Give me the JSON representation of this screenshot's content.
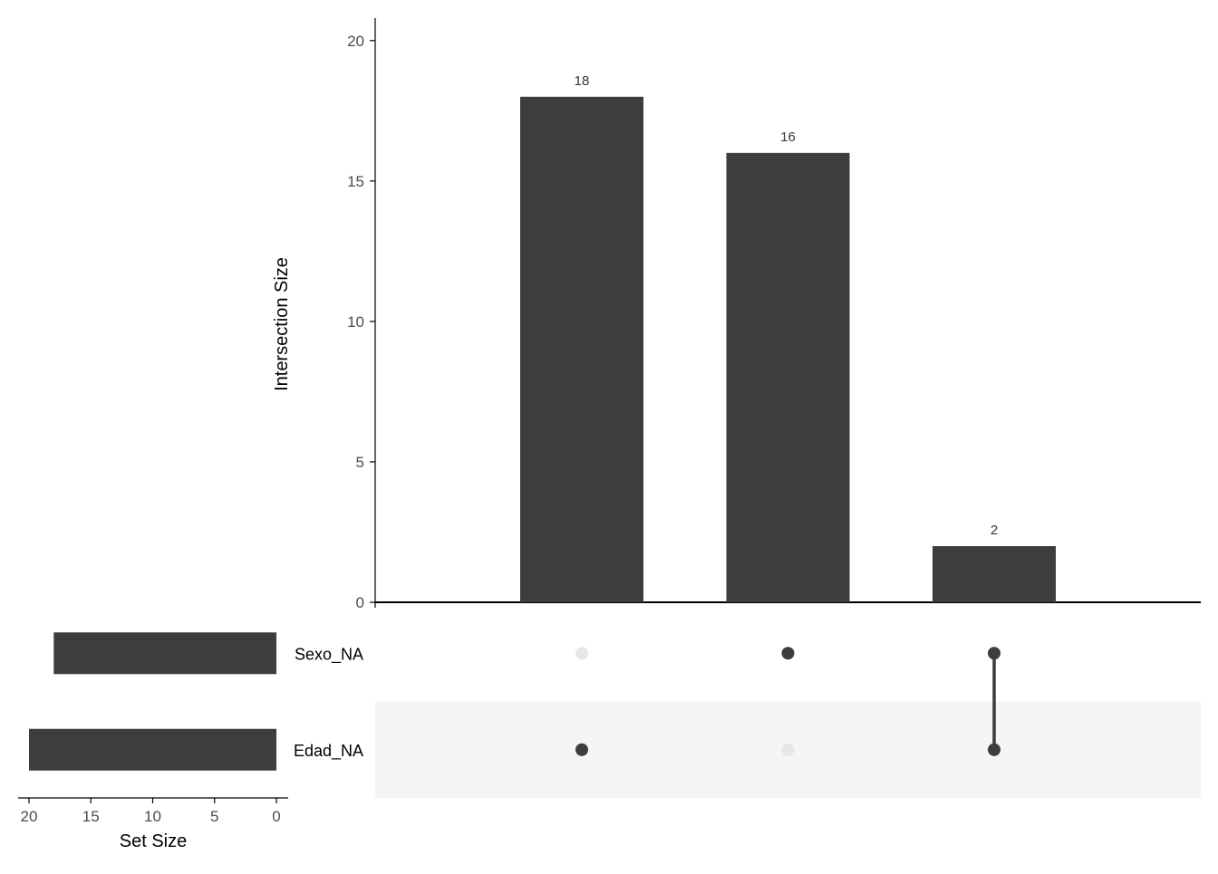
{
  "chart_data": {
    "type": "bar",
    "subtype": "upset",
    "title": "",
    "intersection_axis": {
      "label": "Intersection Size",
      "ylim": [
        0,
        20.8
      ],
      "ticks": [
        0,
        5,
        10,
        15,
        20
      ]
    },
    "intersections": [
      {
        "sets": [
          "Edad_NA"
        ],
        "value": 18,
        "label": "18"
      },
      {
        "sets": [
          "Sexo_NA"
        ],
        "value": 16,
        "label": "16"
      },
      {
        "sets": [
          "Sexo_NA",
          "Edad_NA"
        ],
        "value": 2,
        "label": "2"
      }
    ],
    "sets": [
      {
        "name": "Sexo_NA",
        "size": 18
      },
      {
        "name": "Edad_NA",
        "size": 20
      }
    ],
    "set_size_axis": {
      "label": "Set Size",
      "xlim": [
        21,
        0
      ],
      "ticks": [
        20,
        15,
        10,
        5,
        0
      ]
    },
    "colors": {
      "bar": "#3d3d3d",
      "dot_active": "#3d3d3d",
      "dot_inactive": "#e6e6e6",
      "stripe": "#f5f5f5",
      "axis": "#000000",
      "tick_text": "#4d4d4d"
    },
    "grid": false,
    "legend": "none"
  }
}
